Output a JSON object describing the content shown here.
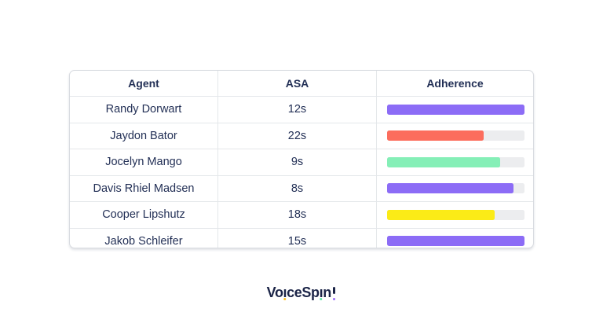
{
  "table": {
    "headers": {
      "agent": "Agent",
      "asa": "ASA",
      "adherence": "Adherence"
    },
    "track_color": "#ecedef",
    "rows": [
      {
        "agent": "Randy Dorwart",
        "asa": "12s",
        "adherence_pct": 100,
        "bar_color": "#8c6cf6"
      },
      {
        "agent": "Jaydon Bator",
        "asa": "22s",
        "adherence_pct": 70,
        "bar_color": "#fc6d5d"
      },
      {
        "agent": "Jocelyn Mango",
        "asa": "9s",
        "adherence_pct": 82,
        "bar_color": "#85efb7"
      },
      {
        "agent": "Davis Rhiel Madsen",
        "asa": "8s",
        "adherence_pct": 92,
        "bar_color": "#8c6cf6"
      },
      {
        "agent": "Cooper Lipshutz",
        "asa": "18s",
        "adherence_pct": 78,
        "bar_color": "#fbeb17"
      },
      {
        "agent": "Jakob Schleifer",
        "asa": "15s",
        "adherence_pct": 100,
        "bar_color": "#8c6cf6"
      }
    ]
  },
  "chart_data": {
    "type": "table",
    "title": "Agent ASA and Adherence table",
    "columns": [
      "Agent",
      "ASA",
      "Adherence"
    ],
    "rows": [
      {
        "agent": "Randy Dorwart",
        "asa_seconds": 12,
        "adherence_percent": 100,
        "bar_color": "#8c6cf6"
      },
      {
        "agent": "Jaydon Bator",
        "asa_seconds": 22,
        "adherence_percent": 70,
        "bar_color": "#fc6d5d"
      },
      {
        "agent": "Jocelyn Mango",
        "asa_seconds": 9,
        "adherence_percent": 82,
        "bar_color": "#85efb7"
      },
      {
        "agent": "Davis Rhiel Madsen",
        "asa_seconds": 8,
        "adherence_percent": 92,
        "bar_color": "#8c6cf6"
      },
      {
        "agent": "Cooper Lipshutz",
        "asa_seconds": 18,
        "adherence_percent": 78,
        "bar_color": "#fbeb17"
      },
      {
        "agent": "Jakob Schleifer",
        "asa_seconds": 15,
        "adherence_percent": 100,
        "bar_color": "#8c6cf6"
      }
    ],
    "adherence_range": [
      0,
      100
    ],
    "bar_track_color": "#ecedef"
  },
  "logo": {
    "part1": "Vo",
    "i1": "ı",
    "part2": "ceSp",
    "i2": "ı",
    "part3": "n",
    "exclamation": "!",
    "text_color": "#1b2447",
    "dot_colors": {
      "i1": "#ffc224",
      "i2": "#62e6a8",
      "exclamation": "#9c6bf9"
    }
  }
}
